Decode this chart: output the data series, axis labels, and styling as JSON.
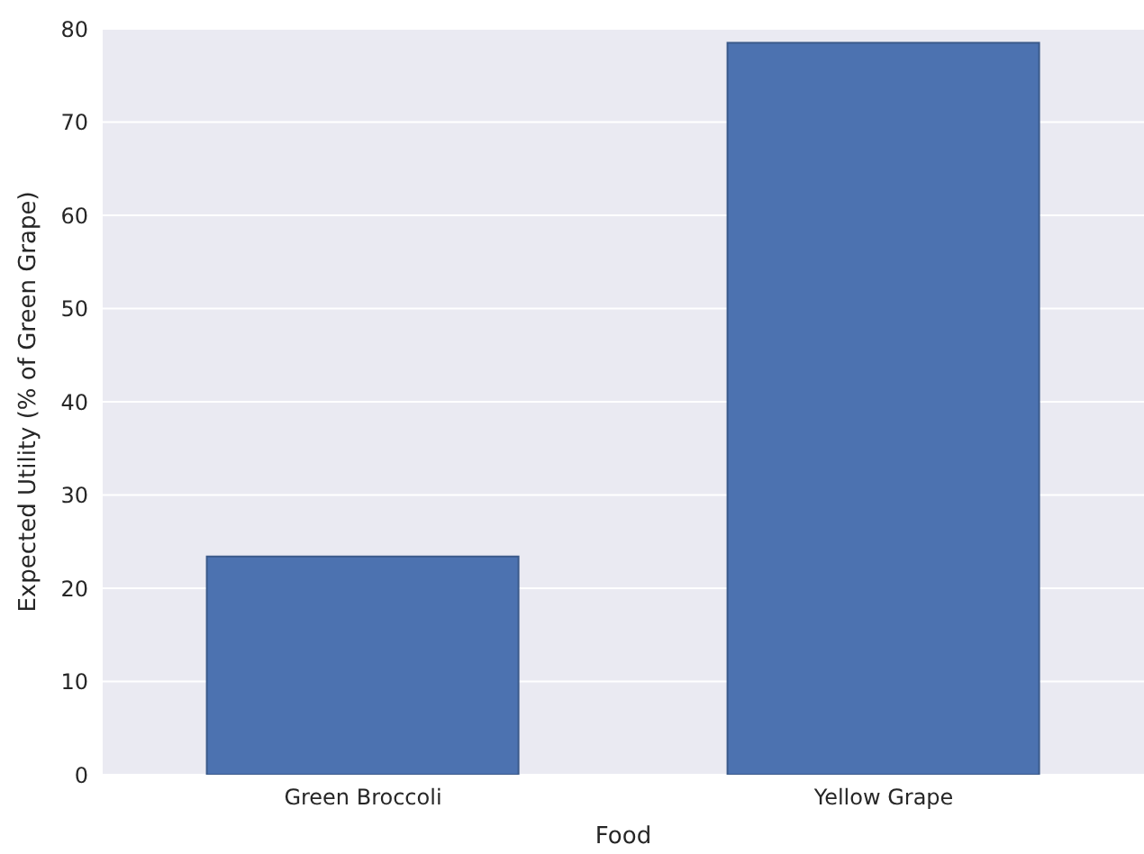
{
  "chart_data": {
    "type": "bar",
    "xlabel": "Food",
    "ylabel": "Expected Utility (% of Green Grape)",
    "categories": [
      "Green Broccoli",
      "Yellow Grape"
    ],
    "values": [
      23.4,
      78.5
    ],
    "color": "#4c72b0",
    "ylim": [
      0,
      80
    ],
    "yticks": [
      0,
      10,
      20,
      30,
      40,
      50,
      60,
      70,
      80
    ],
    "grid": "y"
  }
}
